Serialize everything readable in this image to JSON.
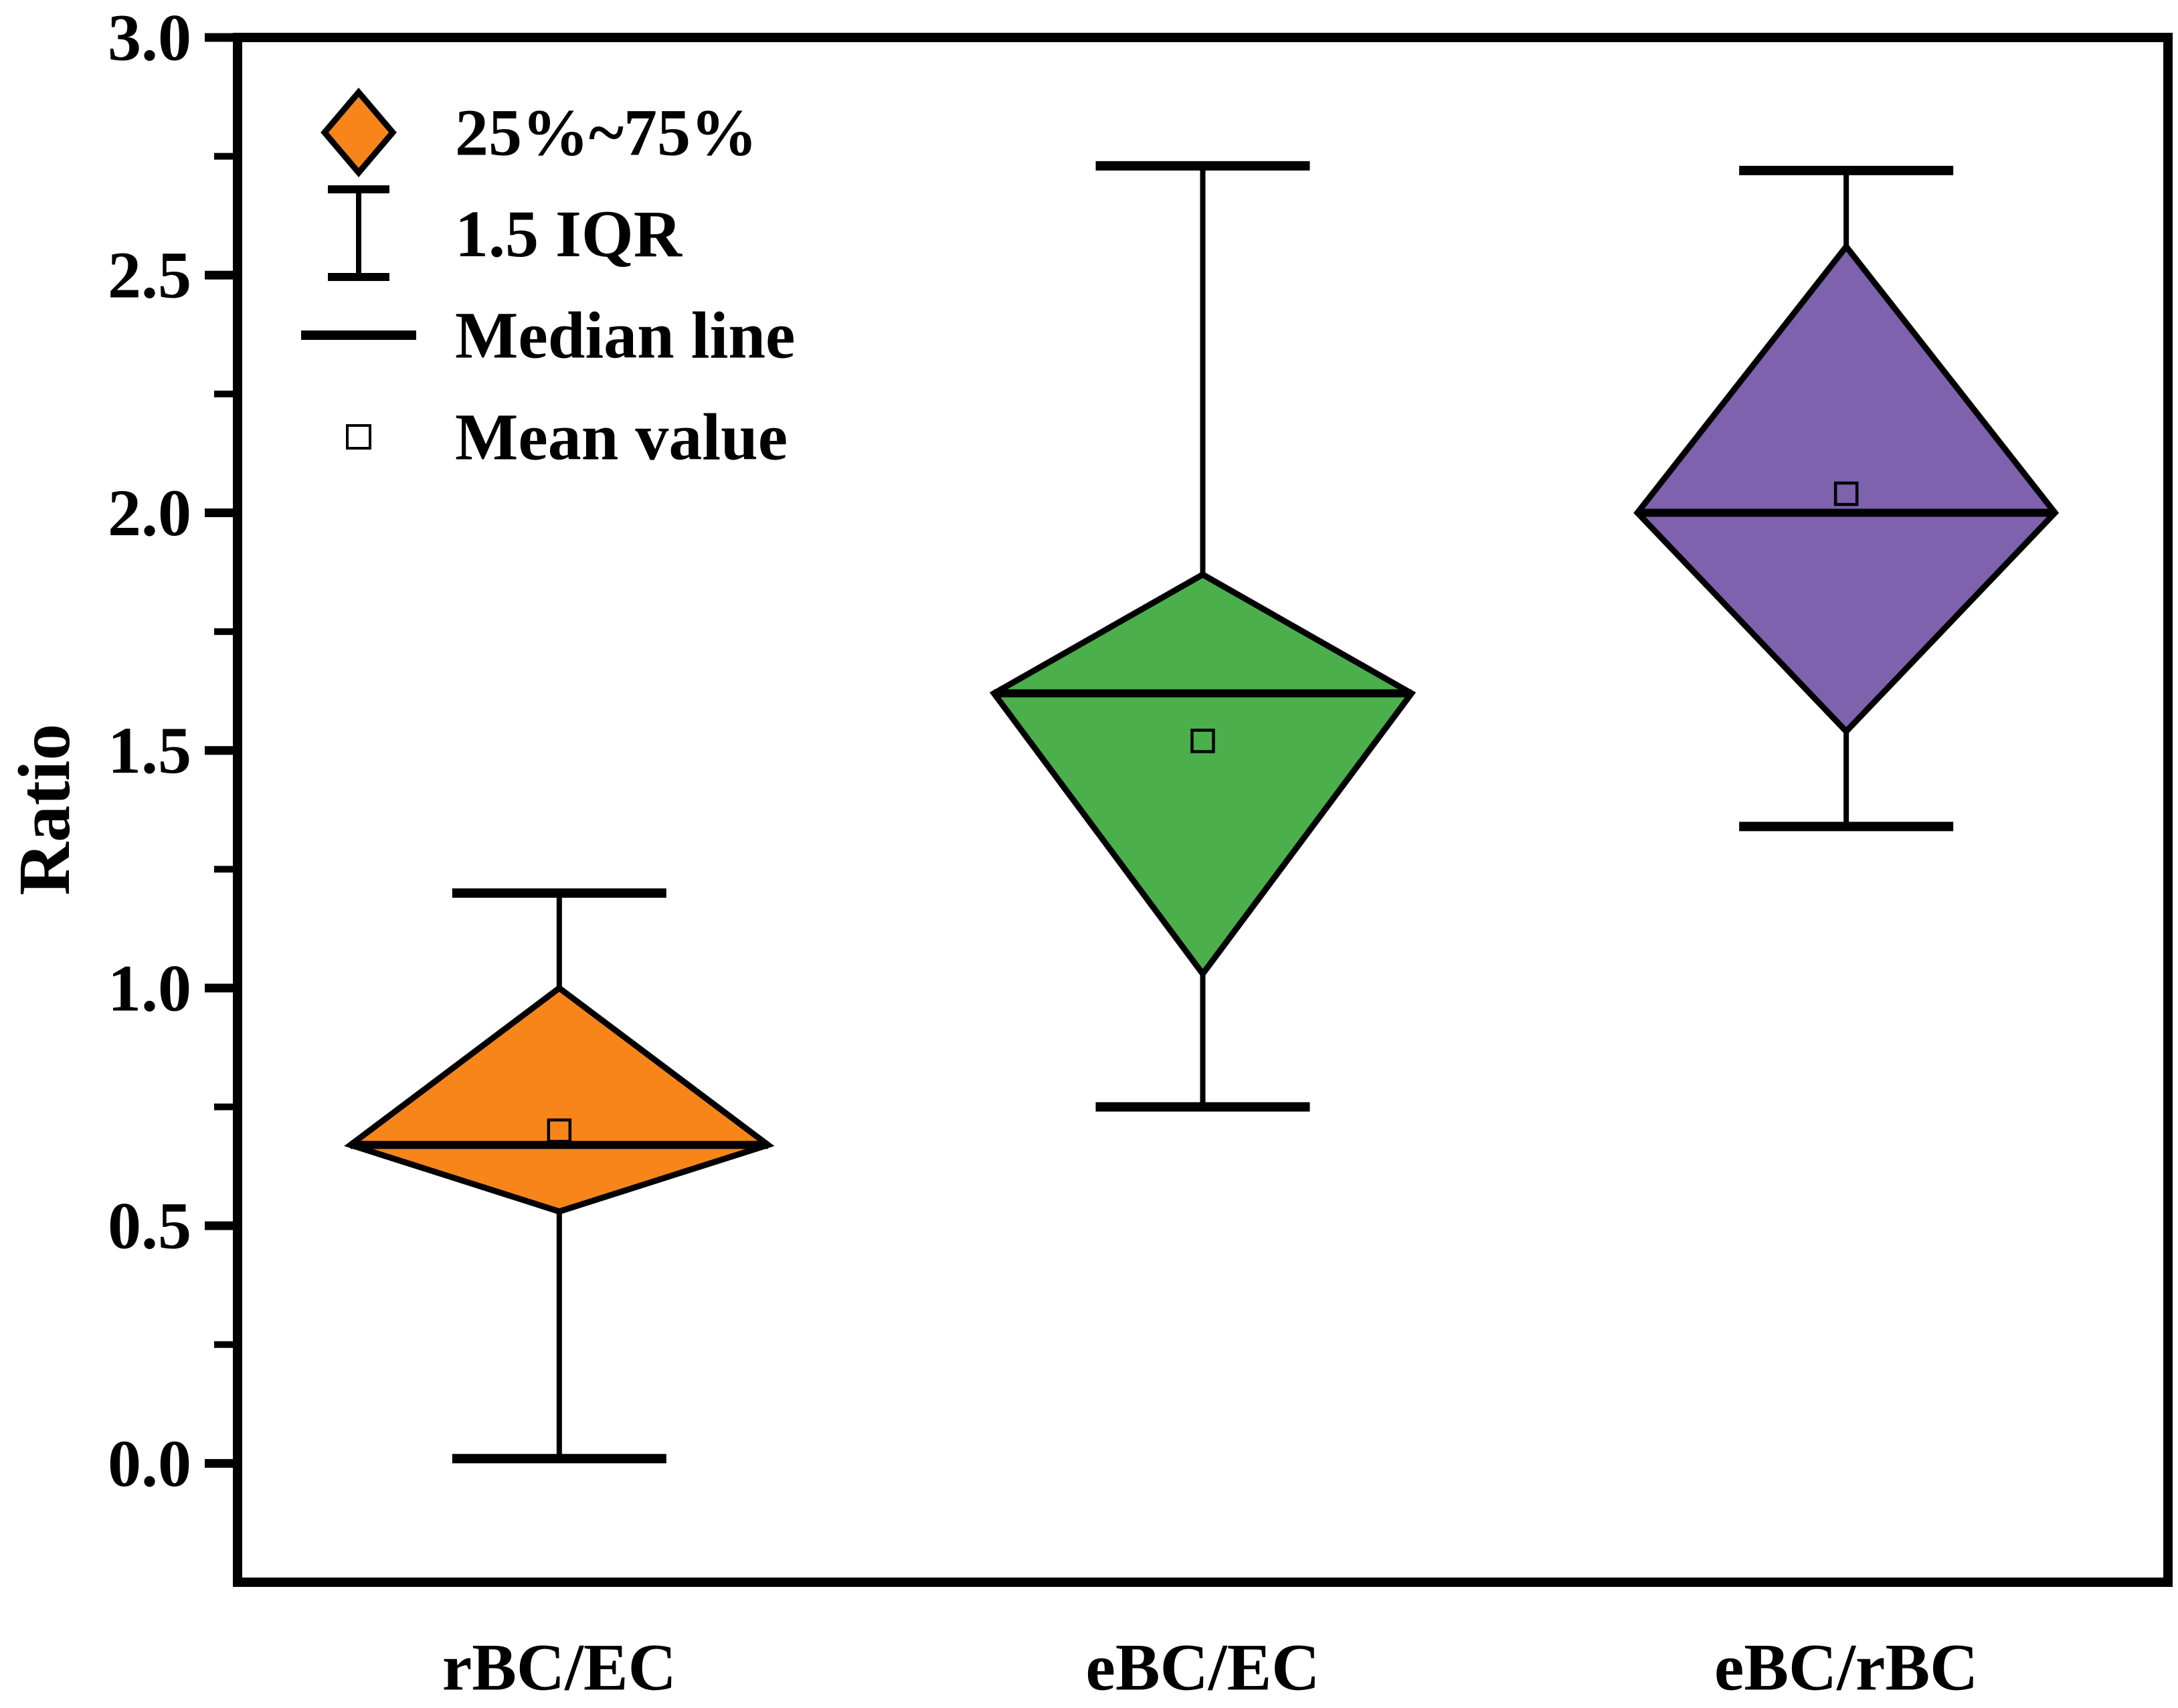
{
  "chart_data": {
    "type": "box",
    "variant": "diamond-box",
    "title": "",
    "ylabel": "Ratio",
    "xlabel": "",
    "categories": [
      "rBC/EC",
      "eBC/EC",
      "eBC/rBC"
    ],
    "ylim": [
      -0.25,
      3.0
    ],
    "yticks_major": [
      3.0,
      2.5,
      2.0,
      1.5,
      1.0,
      0.5,
      0.0
    ],
    "ytick_labels": [
      "3.0",
      "2.5",
      "2.0",
      "1.5",
      "1.0",
      "0.5",
      "0.0"
    ],
    "yticks_minor": [
      2.75,
      2.25,
      1.75,
      1.25,
      0.75,
      0.25
    ],
    "grid": "off",
    "legend_position": "top-left-inside",
    "series": [
      {
        "name": "rBC/EC",
        "color": "#F8851A",
        "q1": 0.53,
        "median": 0.67,
        "q3": 1.0,
        "mean": 0.7,
        "whisker_low": 0.01,
        "whisker_high": 1.2
      },
      {
        "name": "eBC/EC",
        "color": "#4BB04C",
        "q1": 1.03,
        "median": 1.62,
        "q3": 1.87,
        "mean": 1.52,
        "whisker_low": 0.75,
        "whisker_high": 2.73
      },
      {
        "name": "eBC/rBC",
        "color": "#7E62AD",
        "q1": 1.54,
        "median": 2.0,
        "q3": 2.56,
        "mean": 2.04,
        "whisker_low": 1.34,
        "whisker_high": 2.72
      }
    ],
    "legend": [
      {
        "icon": "diamond-icon",
        "label": "25%~75%"
      },
      {
        "icon": "error-bar-icon",
        "label": "1.5 IQR"
      },
      {
        "icon": "median-line-icon",
        "label": "Median line"
      },
      {
        "icon": "mean-square-icon",
        "label": "Mean value"
      }
    ],
    "colors": {
      "axis": "#000000",
      "background": "#FFFFFF",
      "legend_diamond_fill": "#F8851A"
    }
  }
}
